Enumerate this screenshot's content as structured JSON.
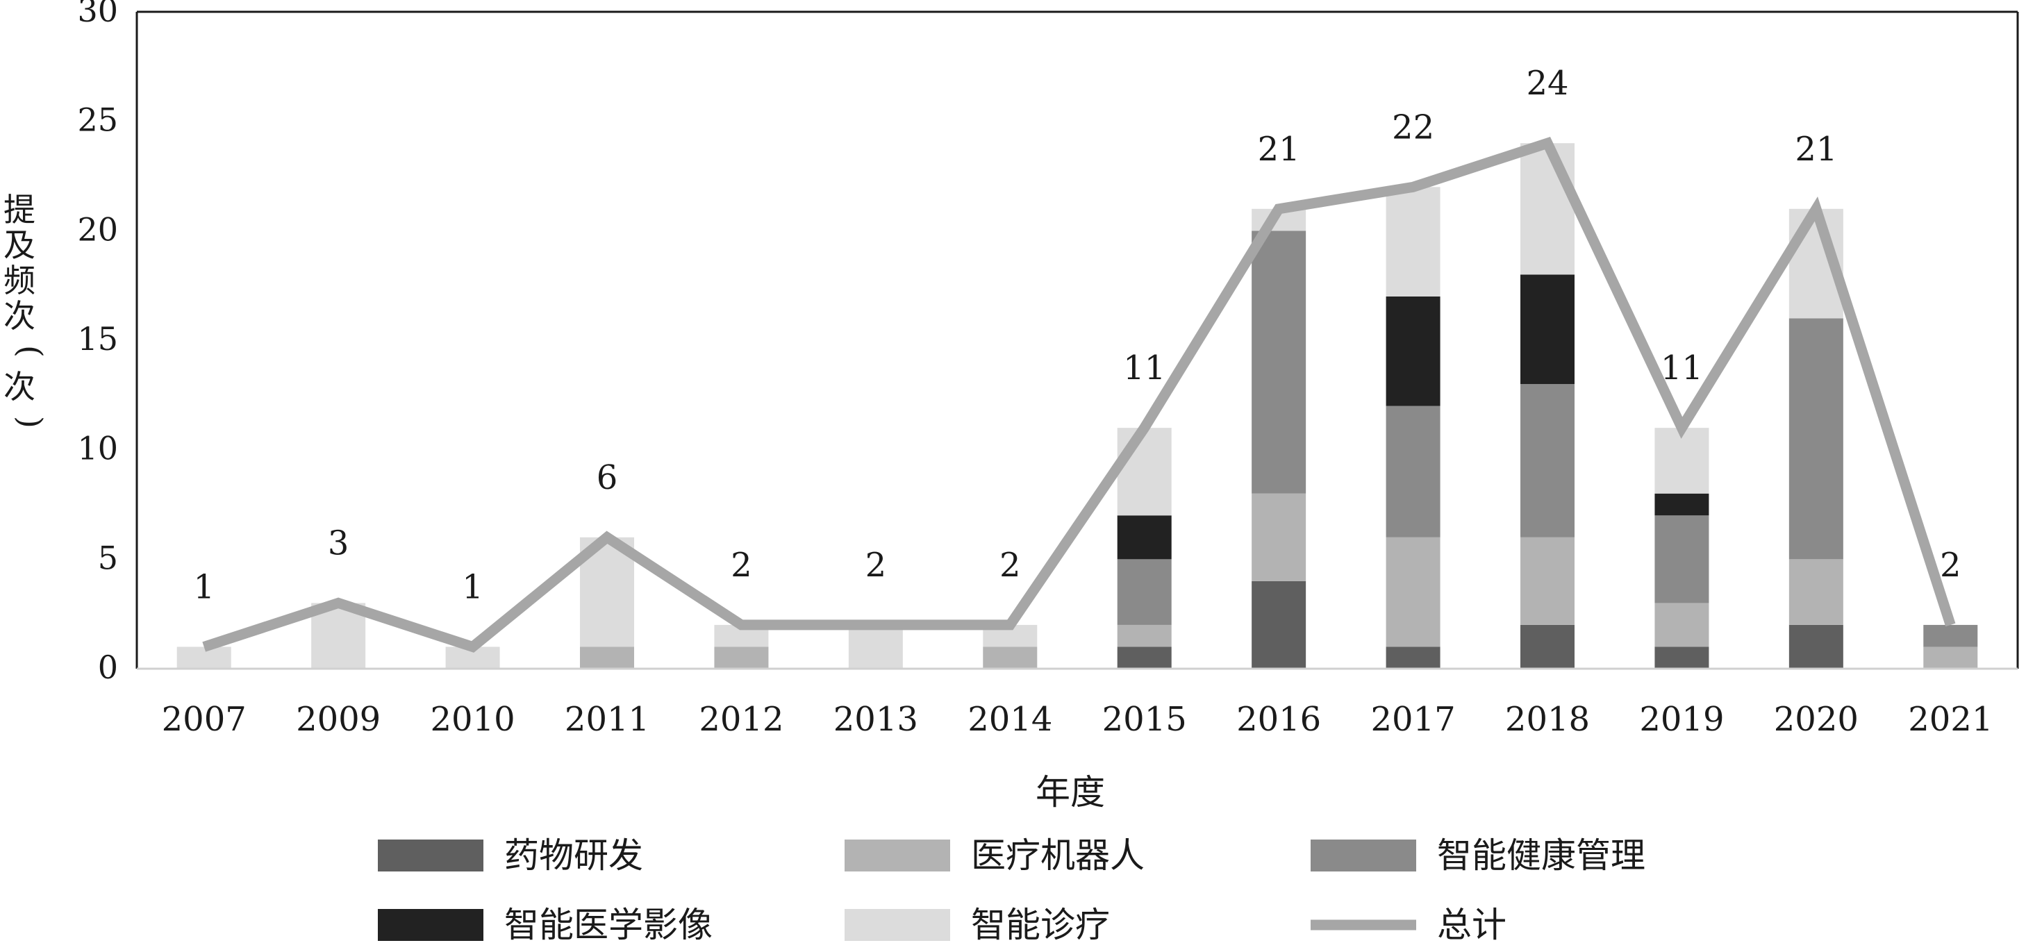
{
  "chart_data": {
    "type": "bar",
    "stacked": true,
    "categories": [
      "2007",
      "2009",
      "2010",
      "2011",
      "2012",
      "2013",
      "2014",
      "2015",
      "2016",
      "2017",
      "2018",
      "2019",
      "2020",
      "2021"
    ],
    "series": [
      {
        "name": "药物研发",
        "color": "#5f5f5f",
        "values": [
          0,
          0,
          0,
          0,
          0,
          0,
          0,
          1,
          4,
          1,
          2,
          1,
          2,
          0
        ]
      },
      {
        "name": "医疗机器人",
        "color": "#b3b3b3",
        "values": [
          0,
          0,
          0,
          1,
          1,
          0,
          1,
          1,
          4,
          5,
          4,
          2,
          3,
          1
        ]
      },
      {
        "name": "智能健康管理",
        "color": "#8a8a8a",
        "values": [
          0,
          0,
          0,
          0,
          0,
          0,
          0,
          3,
          12,
          6,
          7,
          4,
          11,
          1
        ]
      },
      {
        "name": "智能医学影像",
        "color": "#222222",
        "values": [
          0,
          0,
          0,
          0,
          0,
          0,
          0,
          2,
          0,
          5,
          5,
          1,
          0,
          0
        ]
      },
      {
        "name": "智能诊疗",
        "color": "#dcdcdc",
        "values": [
          1,
          3,
          1,
          5,
          1,
          2,
          1,
          4,
          1,
          5,
          6,
          3,
          5,
          0
        ]
      }
    ],
    "line": {
      "name": "总计",
      "color": "#a6a6a6",
      "values": [
        1,
        3,
        1,
        6,
        2,
        2,
        2,
        11,
        21,
        22,
        24,
        11,
        21,
        2
      ]
    },
    "xlabel": "年度",
    "ylabel": "提及频次（次）",
    "ylim": [
      0,
      30
    ],
    "yticks": [
      "0",
      "5",
      "10",
      "15",
      "20",
      "25",
      "30"
    ],
    "grid": false,
    "legend_position": "bottom",
    "legend_order": [
      "药物研发",
      "医疗机器人",
      "智能健康管理",
      "智能医学影像",
      "智能诊疗",
      "总计"
    ]
  }
}
